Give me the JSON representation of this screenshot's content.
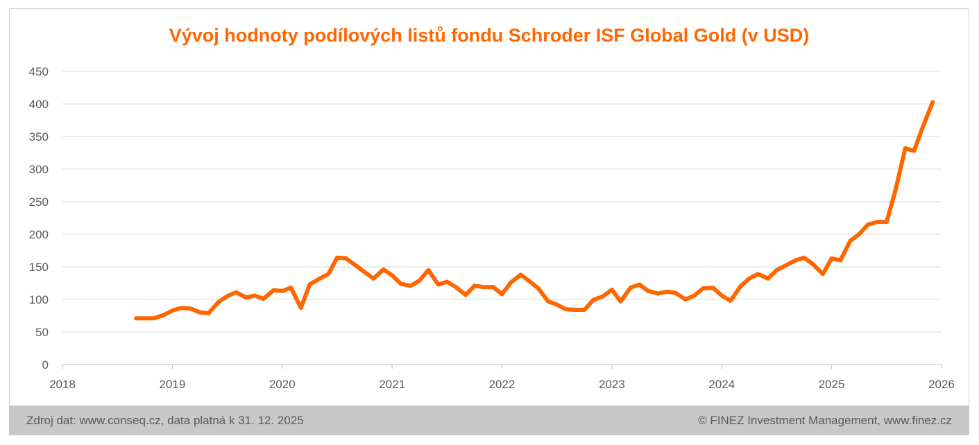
{
  "chart_data": {
    "type": "line",
    "title": "Vývoj hodnoty podílových listů fondu Schroder ISF Global Gold (v USD)",
    "xlabel": "",
    "ylabel": "",
    "xlim": [
      2018,
      2026
    ],
    "ylim": [
      0,
      450
    ],
    "x_ticks": [
      "2018",
      "2019",
      "2020",
      "2021",
      "2022",
      "2023",
      "2024",
      "2025",
      "2026"
    ],
    "y_ticks": [
      "0",
      "50",
      "100",
      "150",
      "200",
      "250",
      "300",
      "350",
      "400",
      "450"
    ],
    "grid": "horizontal",
    "legend": "none",
    "series_color": "#ff6600",
    "series": [
      {
        "x": [
          2018.67,
          2018.75,
          2018.83,
          2018.92,
          2019.0,
          2019.08,
          2019.17,
          2019.25,
          2019.33,
          2019.42,
          2019.5,
          2019.58,
          2019.67,
          2019.75,
          2019.83,
          2019.92,
          2020.0,
          2020.08,
          2020.17,
          2020.25,
          2020.33,
          2020.42,
          2020.5,
          2020.58,
          2020.67,
          2020.75,
          2020.83,
          2020.92,
          2021.0,
          2021.08,
          2021.17,
          2021.25,
          2021.33,
          2021.42,
          2021.5,
          2021.58,
          2021.67,
          2021.75,
          2021.83,
          2021.92,
          2022.0,
          2022.08,
          2022.17,
          2022.25,
          2022.33,
          2022.42,
          2022.5,
          2022.58,
          2022.67,
          2022.75,
          2022.83,
          2022.92,
          2023.0,
          2023.08,
          2023.17,
          2023.25,
          2023.33,
          2023.42,
          2023.5,
          2023.58,
          2023.67,
          2023.75,
          2023.83,
          2023.92,
          2024.0,
          2024.08,
          2024.17,
          2024.25,
          2024.33,
          2024.42,
          2024.5,
          2024.58,
          2024.67,
          2024.75,
          2024.83,
          2024.92,
          2025.0,
          2025.08,
          2025.17,
          2025.25,
          2025.33,
          2025.42,
          2025.5,
          2025.58,
          2025.67,
          2025.75,
          2025.83,
          2025.92
        ],
        "values": [
          71,
          71,
          71,
          76,
          83,
          87,
          86,
          80,
          79,
          96,
          105,
          111,
          103,
          106,
          101,
          114,
          113,
          118,
          87,
          123,
          131,
          139,
          164,
          163,
          152,
          142,
          132,
          146,
          137,
          124,
          121,
          129,
          145,
          123,
          127,
          119,
          107,
          121,
          119,
          119,
          108,
          126,
          138,
          128,
          117,
          97,
          92,
          85,
          84,
          84,
          99,
          105,
          115,
          97,
          118,
          123,
          113,
          109,
          112,
          110,
          100,
          106,
          117,
          118,
          106,
          98,
          120,
          132,
          139,
          132,
          145,
          152,
          160,
          164,
          154,
          139,
          163,
          160,
          190,
          200,
          215,
          219,
          219,
          267,
          332,
          328,
          365,
          403
        ]
      }
    ]
  },
  "footer": {
    "source": "Zdroj dat: www.conseq.cz, data platná k 31. 12. 2025",
    "copyright": "© FINEZ Investment Management, www.finez.cz"
  }
}
